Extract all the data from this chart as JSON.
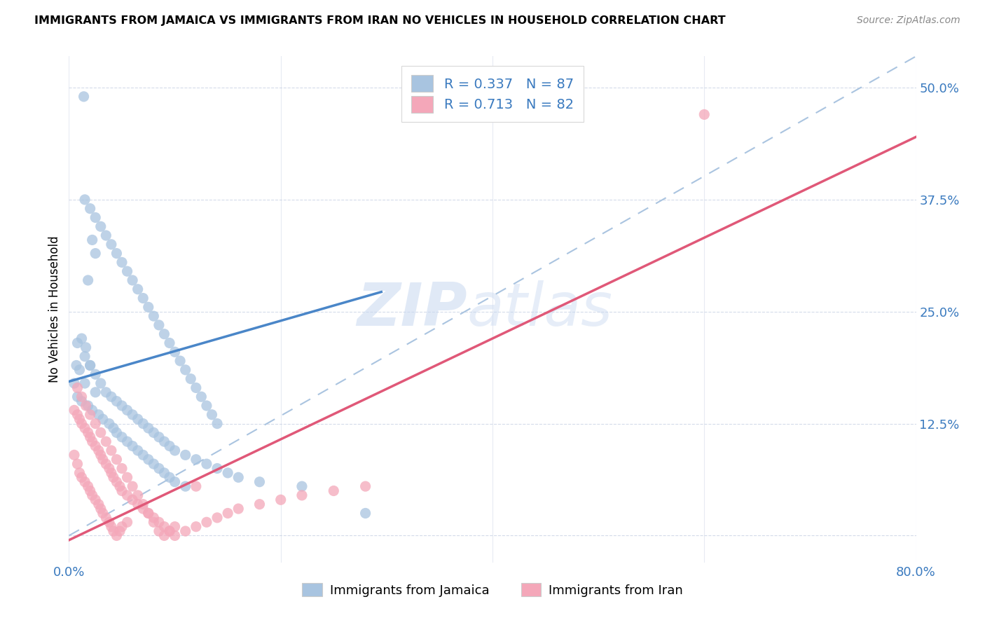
{
  "title": "IMMIGRANTS FROM JAMAICA VS IMMIGRANTS FROM IRAN NO VEHICLES IN HOUSEHOLD CORRELATION CHART",
  "source": "Source: ZipAtlas.com",
  "ylabel": "No Vehicles in Household",
  "x_min": 0.0,
  "x_max": 0.8,
  "y_min": -0.03,
  "y_max": 0.535,
  "x_ticks": [
    0.0,
    0.2,
    0.4,
    0.6,
    0.8
  ],
  "x_tick_labels": [
    "0.0%",
    "",
    "",
    "",
    "80.0%"
  ],
  "y_ticks": [
    0.0,
    0.125,
    0.25,
    0.375,
    0.5
  ],
  "y_tick_labels": [
    "",
    "12.5%",
    "25.0%",
    "37.5%",
    "50.0%"
  ],
  "legend_R1": "0.337",
  "legend_N1": "87",
  "legend_R2": "0.713",
  "legend_N2": "82",
  "blue_color": "#a8c4e0",
  "pink_color": "#f4a7b9",
  "blue_line_color": "#4a86c8",
  "pink_line_color": "#e05878",
  "dashed_line_color": "#aac4e0",
  "watermark_zip": "ZIP",
  "watermark_atlas": "atlas",
  "jamaica_label": "Immigrants from Jamaica",
  "iran_label": "Immigrants from Iran",
  "blue_line_x": [
    0.0,
    0.295
  ],
  "blue_line_y": [
    0.172,
    0.272
  ],
  "pink_line_x": [
    0.0,
    0.8
  ],
  "pink_line_y": [
    -0.005,
    0.445
  ],
  "dash_line_x": [
    0.0,
    0.8
  ],
  "dash_line_y": [
    0.0,
    0.535
  ],
  "jamaica_x": [
    0.014,
    0.007,
    0.022,
    0.025,
    0.018,
    0.008,
    0.012,
    0.016,
    0.02,
    0.01,
    0.005,
    0.015,
    0.025,
    0.008,
    0.012,
    0.018,
    0.022,
    0.028,
    0.032,
    0.038,
    0.042,
    0.045,
    0.05,
    0.055,
    0.06,
    0.065,
    0.07,
    0.075,
    0.08,
    0.085,
    0.09,
    0.095,
    0.1,
    0.11,
    0.015,
    0.02,
    0.025,
    0.03,
    0.035,
    0.04,
    0.045,
    0.05,
    0.055,
    0.06,
    0.065,
    0.07,
    0.075,
    0.08,
    0.085,
    0.09,
    0.095,
    0.1,
    0.105,
    0.11,
    0.115,
    0.12,
    0.125,
    0.13,
    0.135,
    0.14,
    0.015,
    0.02,
    0.025,
    0.03,
    0.035,
    0.04,
    0.045,
    0.05,
    0.055,
    0.06,
    0.065,
    0.07,
    0.075,
    0.08,
    0.085,
    0.09,
    0.095,
    0.1,
    0.11,
    0.12,
    0.13,
    0.14,
    0.15,
    0.16,
    0.18,
    0.22,
    0.28
  ],
  "jamaica_y": [
    0.49,
    0.19,
    0.33,
    0.315,
    0.285,
    0.215,
    0.22,
    0.21,
    0.19,
    0.185,
    0.17,
    0.17,
    0.16,
    0.155,
    0.15,
    0.145,
    0.14,
    0.135,
    0.13,
    0.125,
    0.12,
    0.115,
    0.11,
    0.105,
    0.1,
    0.095,
    0.09,
    0.085,
    0.08,
    0.075,
    0.07,
    0.065,
    0.06,
    0.055,
    0.375,
    0.365,
    0.355,
    0.345,
    0.335,
    0.325,
    0.315,
    0.305,
    0.295,
    0.285,
    0.275,
    0.265,
    0.255,
    0.245,
    0.235,
    0.225,
    0.215,
    0.205,
    0.195,
    0.185,
    0.175,
    0.165,
    0.155,
    0.145,
    0.135,
    0.125,
    0.2,
    0.19,
    0.18,
    0.17,
    0.16,
    0.155,
    0.15,
    0.145,
    0.14,
    0.135,
    0.13,
    0.125,
    0.12,
    0.115,
    0.11,
    0.105,
    0.1,
    0.095,
    0.09,
    0.085,
    0.08,
    0.075,
    0.07,
    0.065,
    0.06,
    0.055,
    0.025
  ],
  "iran_x": [
    0.005,
    0.008,
    0.01,
    0.012,
    0.015,
    0.018,
    0.02,
    0.022,
    0.025,
    0.028,
    0.03,
    0.032,
    0.035,
    0.038,
    0.04,
    0.042,
    0.045,
    0.048,
    0.05,
    0.055,
    0.005,
    0.008,
    0.01,
    0.012,
    0.015,
    0.018,
    0.02,
    0.022,
    0.025,
    0.028,
    0.03,
    0.032,
    0.035,
    0.038,
    0.04,
    0.042,
    0.045,
    0.048,
    0.05,
    0.055,
    0.06,
    0.065,
    0.07,
    0.075,
    0.08,
    0.085,
    0.09,
    0.095,
    0.1,
    0.11,
    0.12,
    0.13,
    0.14,
    0.15,
    0.16,
    0.18,
    0.2,
    0.22,
    0.25,
    0.28,
    0.008,
    0.012,
    0.016,
    0.02,
    0.025,
    0.03,
    0.035,
    0.04,
    0.045,
    0.05,
    0.055,
    0.06,
    0.065,
    0.07,
    0.075,
    0.08,
    0.085,
    0.09,
    0.095,
    0.1,
    0.12,
    0.6
  ],
  "iran_y": [
    0.09,
    0.08,
    0.07,
    0.065,
    0.06,
    0.055,
    0.05,
    0.045,
    0.04,
    0.035,
    0.03,
    0.025,
    0.02,
    0.015,
    0.01,
    0.005,
    0.0,
    0.005,
    0.01,
    0.015,
    0.14,
    0.135,
    0.13,
    0.125,
    0.12,
    0.115,
    0.11,
    0.105,
    0.1,
    0.095,
    0.09,
    0.085,
    0.08,
    0.075,
    0.07,
    0.065,
    0.06,
    0.055,
    0.05,
    0.045,
    0.04,
    0.035,
    0.03,
    0.025,
    0.02,
    0.015,
    0.01,
    0.005,
    0.0,
    0.005,
    0.01,
    0.015,
    0.02,
    0.025,
    0.03,
    0.035,
    0.04,
    0.045,
    0.05,
    0.055,
    0.165,
    0.155,
    0.145,
    0.135,
    0.125,
    0.115,
    0.105,
    0.095,
    0.085,
    0.075,
    0.065,
    0.055,
    0.045,
    0.035,
    0.025,
    0.015,
    0.005,
    0.0,
    0.005,
    0.01,
    0.055,
    0.47
  ]
}
